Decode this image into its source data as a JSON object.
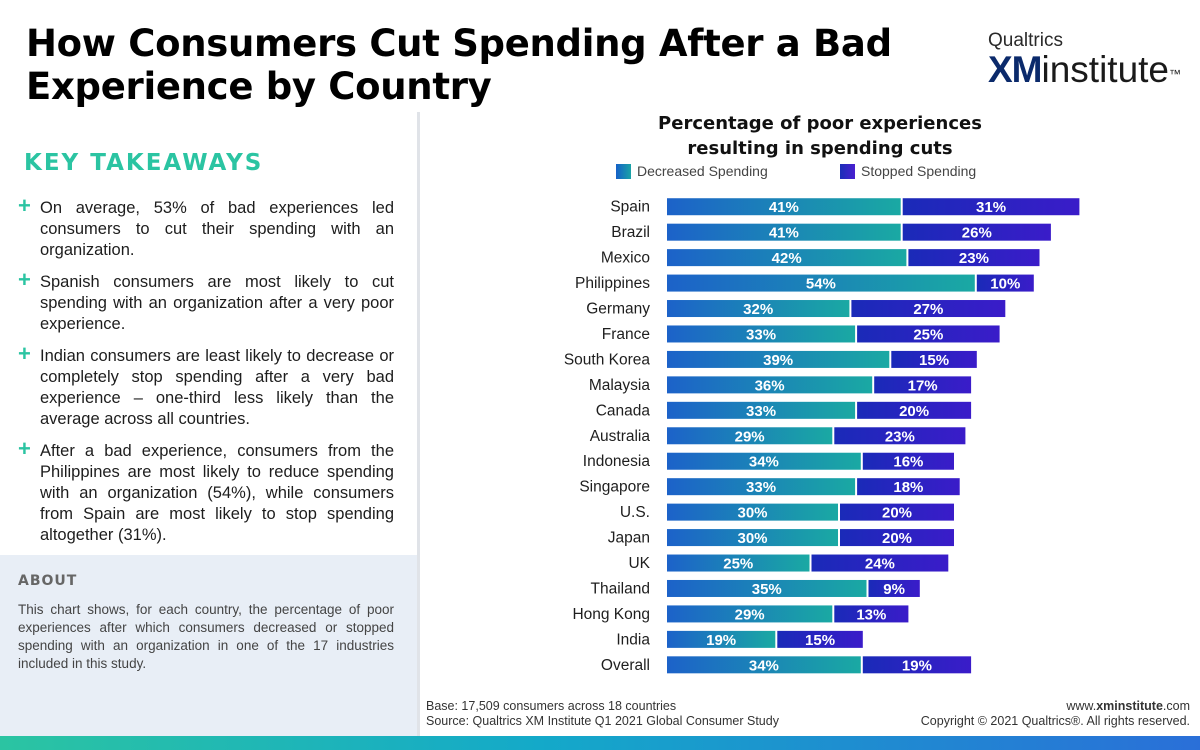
{
  "title": "How Consumers Cut Spending After a Bad Experience by Country",
  "brand": {
    "top": "Qualtrics",
    "xm": "XM",
    "institute": "institute",
    "tm": "™"
  },
  "key_takeaways": {
    "heading": "KEY TAKEAWAYS",
    "items": [
      "On average, 53% of bad experiences led consumers to cut their spending with an organization.",
      "Spanish consumers are most likely to cut spending with an organization after a very poor experience.",
      "Indian consumers are least likely to decrease or completely stop spending after a very bad experience – one-third less likely than the average across all countries.",
      "After a bad experience, consumers from the Philippines are most likely to reduce spending with an organization (54%), while consumers from Spain are most likely to stop spending altogether (31%)."
    ]
  },
  "about": {
    "heading": "ABOUT",
    "text": "This chart shows, for each country, the percentage of poor experiences after which consumers decreased or stopped spending with an organization in one of the 17 industries included in this study."
  },
  "footer": {
    "base": "Base: 17,509 consumers across 18 countries",
    "source": "Source: Qualtrics XM Institute Q1 2021 Global Consumer Study",
    "site_prefix": "www.",
    "site_bold": "xminstitute",
    "site_suffix": ".com",
    "copyright": "Copyright © 2021 Qualtrics®. All rights reserved."
  },
  "colors": {
    "decreased": "#1aa3a6",
    "stopped": "#2b17c6",
    "accent": "#2bc4a2"
  },
  "chart_data": {
    "type": "bar",
    "orientation": "horizontal-stacked",
    "title_line1": "Percentage of poor experiences",
    "title_line2": "resulting in spending cuts",
    "legend": [
      "Decreased Spending",
      "Stopped Spending"
    ],
    "categories": [
      "Spain",
      "Brazil",
      "Mexico",
      "Philippines",
      "Germany",
      "France",
      "South Korea",
      "Malaysia",
      "Canada",
      "Australia",
      "Indonesia",
      "Singapore",
      "U.S.",
      "Japan",
      "UK",
      "Thailand",
      "Hong Kong",
      "India",
      "Overall"
    ],
    "series": [
      {
        "name": "Decreased Spending",
        "values": [
          41,
          41,
          42,
          54,
          32,
          33,
          39,
          36,
          33,
          29,
          34,
          33,
          30,
          30,
          25,
          35,
          29,
          19,
          34
        ]
      },
      {
        "name": "Stopped Spending",
        "values": [
          31,
          26,
          23,
          10,
          27,
          25,
          15,
          17,
          20,
          23,
          16,
          18,
          20,
          20,
          24,
          9,
          13,
          15,
          19
        ]
      }
    ],
    "value_suffix": "%",
    "xlim": [
      0,
      75
    ]
  }
}
